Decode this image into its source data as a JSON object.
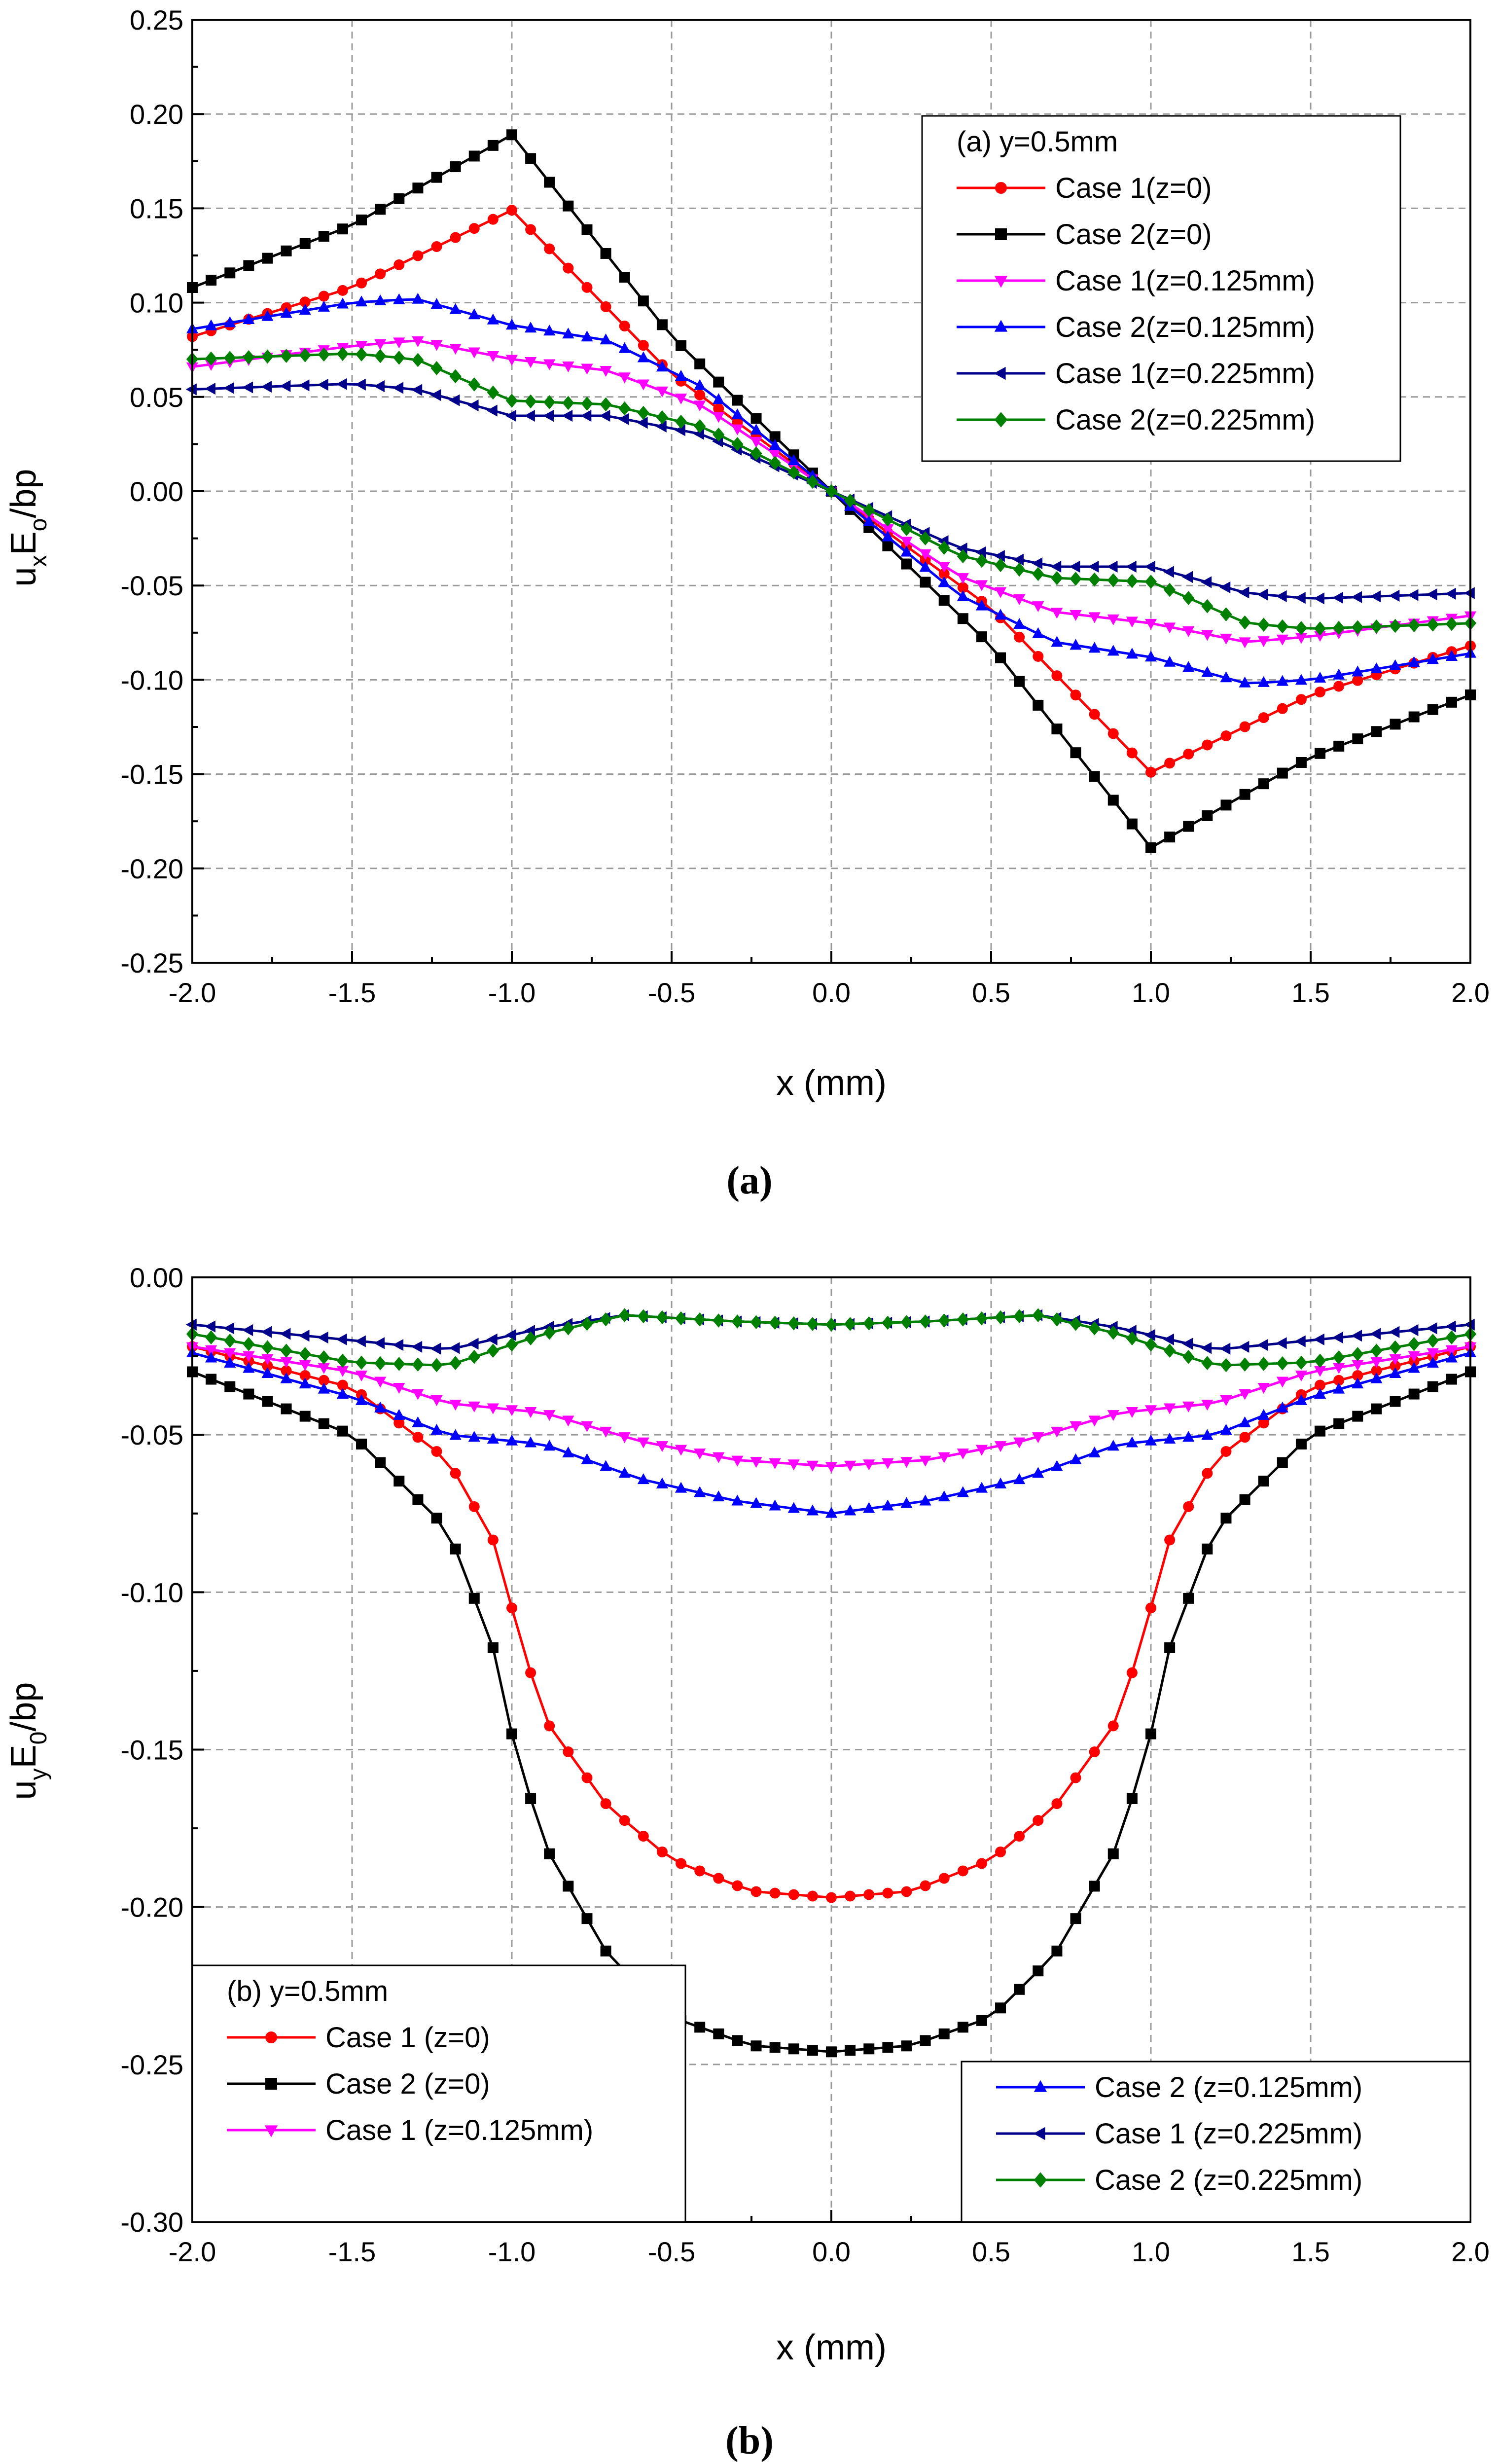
{
  "chart_data": [
    {
      "type": "line",
      "panel_label": "(a)",
      "xlabel": "x (mm)",
      "ylabel": {
        "main": "u",
        "sub1": "x",
        "mid": "E",
        "sub2": "o",
        "tail": "/bp"
      },
      "xlim": [
        -2.0,
        2.0
      ],
      "ylim": [
        -0.25,
        0.25
      ],
      "xticks": [
        "-2.0",
        "-1.5",
        "-1.0",
        "-0.5",
        "0.0",
        "0.5",
        "1.0",
        "1.5",
        "2.0"
      ],
      "yticks": [
        "-0.25",
        "-0.20",
        "-0.15",
        "-0.10",
        "-0.05",
        "0.00",
        "0.05",
        "0.10",
        "0.15",
        "0.20",
        "0.25"
      ],
      "grid": true,
      "legend_title": "(a) y=0.5mm",
      "legend_position": "top-right",
      "series": [
        {
          "name": "Case 1(z=0)",
          "color": "#ff0000",
          "marker": "circle",
          "key_x": [
            -2.0,
            -1.5,
            -1.0,
            -0.5,
            0.0
          ],
          "key_y": [
            0.082,
            0.108,
            0.149,
            0.062,
            0.0
          ]
        },
        {
          "name": "Case 2(z=0)",
          "color": "#000000",
          "marker": "square",
          "key_x": [
            -2.0,
            -1.5,
            -1.0,
            -0.5,
            0.0
          ],
          "key_y": [
            0.108,
            0.141,
            0.189,
            0.082,
            0.0
          ]
        },
        {
          "name": "Case 1(z=0.125mm)",
          "color": "#ff00ff",
          "marker": "triangle-down",
          "key_x": [
            -2.0,
            -1.5,
            -1.3,
            -1.0,
            -0.7,
            -0.4,
            0.0
          ],
          "key_y": [
            0.066,
            0.077,
            0.08,
            0.07,
            0.064,
            0.045,
            0.0
          ]
        },
        {
          "name": "Case 2(z=0.125mm)",
          "color": "#0000ff",
          "marker": "triangle-up",
          "key_x": [
            -2.0,
            -1.5,
            -1.3,
            -1.0,
            -0.7,
            -0.4,
            0.0
          ],
          "key_y": [
            0.086,
            0.1,
            0.102,
            0.088,
            0.08,
            0.055,
            0.0
          ]
        },
        {
          "name": "Case 1(z=0.225mm)",
          "color": "#00008b",
          "marker": "triangle-left",
          "key_x": [
            -2.0,
            -1.5,
            -1.3,
            -1.0,
            -0.7,
            -0.4,
            0.0
          ],
          "key_y": [
            0.054,
            0.057,
            0.054,
            0.04,
            0.04,
            0.03,
            0.0
          ]
        },
        {
          "name": "Case 2(z=0.225mm)",
          "color": "#008000",
          "marker": "diamond",
          "key_x": [
            -2.0,
            -1.5,
            -1.3,
            -1.0,
            -0.7,
            -0.4,
            0.0
          ],
          "key_y": [
            0.07,
            0.073,
            0.07,
            0.048,
            0.046,
            0.034,
            0.0
          ]
        }
      ]
    },
    {
      "type": "line",
      "panel_label": "(b)",
      "xlabel": "x (mm)",
      "ylabel": {
        "main": "u",
        "sub1": "y",
        "mid": "E",
        "sub2": "0",
        "tail": "/bp"
      },
      "xlim": [
        -2.0,
        2.0
      ],
      "ylim": [
        -0.3,
        0.0
      ],
      "xticks": [
        "-2.0",
        "-1.5",
        "-1.0",
        "-0.5",
        "0.0",
        "0.5",
        "1.0",
        "1.5",
        "2.0"
      ],
      "yticks": [
        "-0.30",
        "-0.25",
        "-0.20",
        "-0.15",
        "-0.10",
        "-0.05",
        "0.00"
      ],
      "grid": true,
      "legend_title": "(b) y=0.5mm",
      "legend_position": "bottom-left and bottom-right",
      "series": [
        {
          "name": "Case 1 (z=0)",
          "color": "#ff0000",
          "marker": "circle",
          "key_x": [
            -2.0,
            -1.5,
            -1.2,
            -1.05,
            -1.0,
            -0.9,
            -0.7,
            -0.5,
            -0.25,
            0.0
          ],
          "key_y": [
            -0.022,
            -0.035,
            -0.058,
            -0.085,
            -0.105,
            -0.14,
            -0.168,
            -0.185,
            -0.195,
            -0.197
          ]
        },
        {
          "name": "Case 2 (z=0)",
          "color": "#000000",
          "marker": "square",
          "key_x": [
            -2.0,
            -1.5,
            -1.2,
            -1.05,
            -1.0,
            -0.9,
            -0.7,
            -0.5,
            -0.25,
            0.0
          ],
          "key_y": [
            -0.03,
            -0.05,
            -0.08,
            -0.12,
            -0.145,
            -0.18,
            -0.215,
            -0.235,
            -0.244,
            -0.246
          ]
        },
        {
          "name": "Case 1 (z=0.125mm)",
          "color": "#ff00ff",
          "marker": "triangle-down",
          "key_x": [
            -2.0,
            -1.5,
            -1.2,
            -0.9,
            -0.6,
            -0.3,
            0.0
          ],
          "key_y": [
            -0.022,
            -0.03,
            -0.04,
            -0.043,
            -0.052,
            -0.058,
            -0.06
          ]
        },
        {
          "name": "Case 2 (z=0.125mm)",
          "color": "#0000ff",
          "marker": "triangle-up",
          "key_x": [
            -2.0,
            -1.5,
            -1.2,
            -0.9,
            -0.6,
            -0.3,
            0.0
          ],
          "key_y": [
            -0.024,
            -0.038,
            -0.05,
            -0.053,
            -0.064,
            -0.071,
            -0.075
          ]
        },
        {
          "name": "Case 1 (z=0.225mm)",
          "color": "#00008b",
          "marker": "triangle-left",
          "key_x": [
            -2.0,
            -1.5,
            -1.2,
            -0.9,
            -0.65,
            -0.3,
            0.0
          ],
          "key_y": [
            -0.015,
            -0.02,
            -0.023,
            -0.016,
            -0.012,
            -0.014,
            -0.015
          ]
        },
        {
          "name": "Case 2 (z=0.225mm)",
          "color": "#008000",
          "marker": "diamond",
          "key_x": [
            -2.0,
            -1.5,
            -1.2,
            -0.9,
            -0.65,
            -0.3,
            0.0
          ],
          "key_y": [
            -0.018,
            -0.027,
            -0.028,
            -0.018,
            -0.012,
            -0.014,
            -0.015
          ]
        }
      ]
    }
  ]
}
